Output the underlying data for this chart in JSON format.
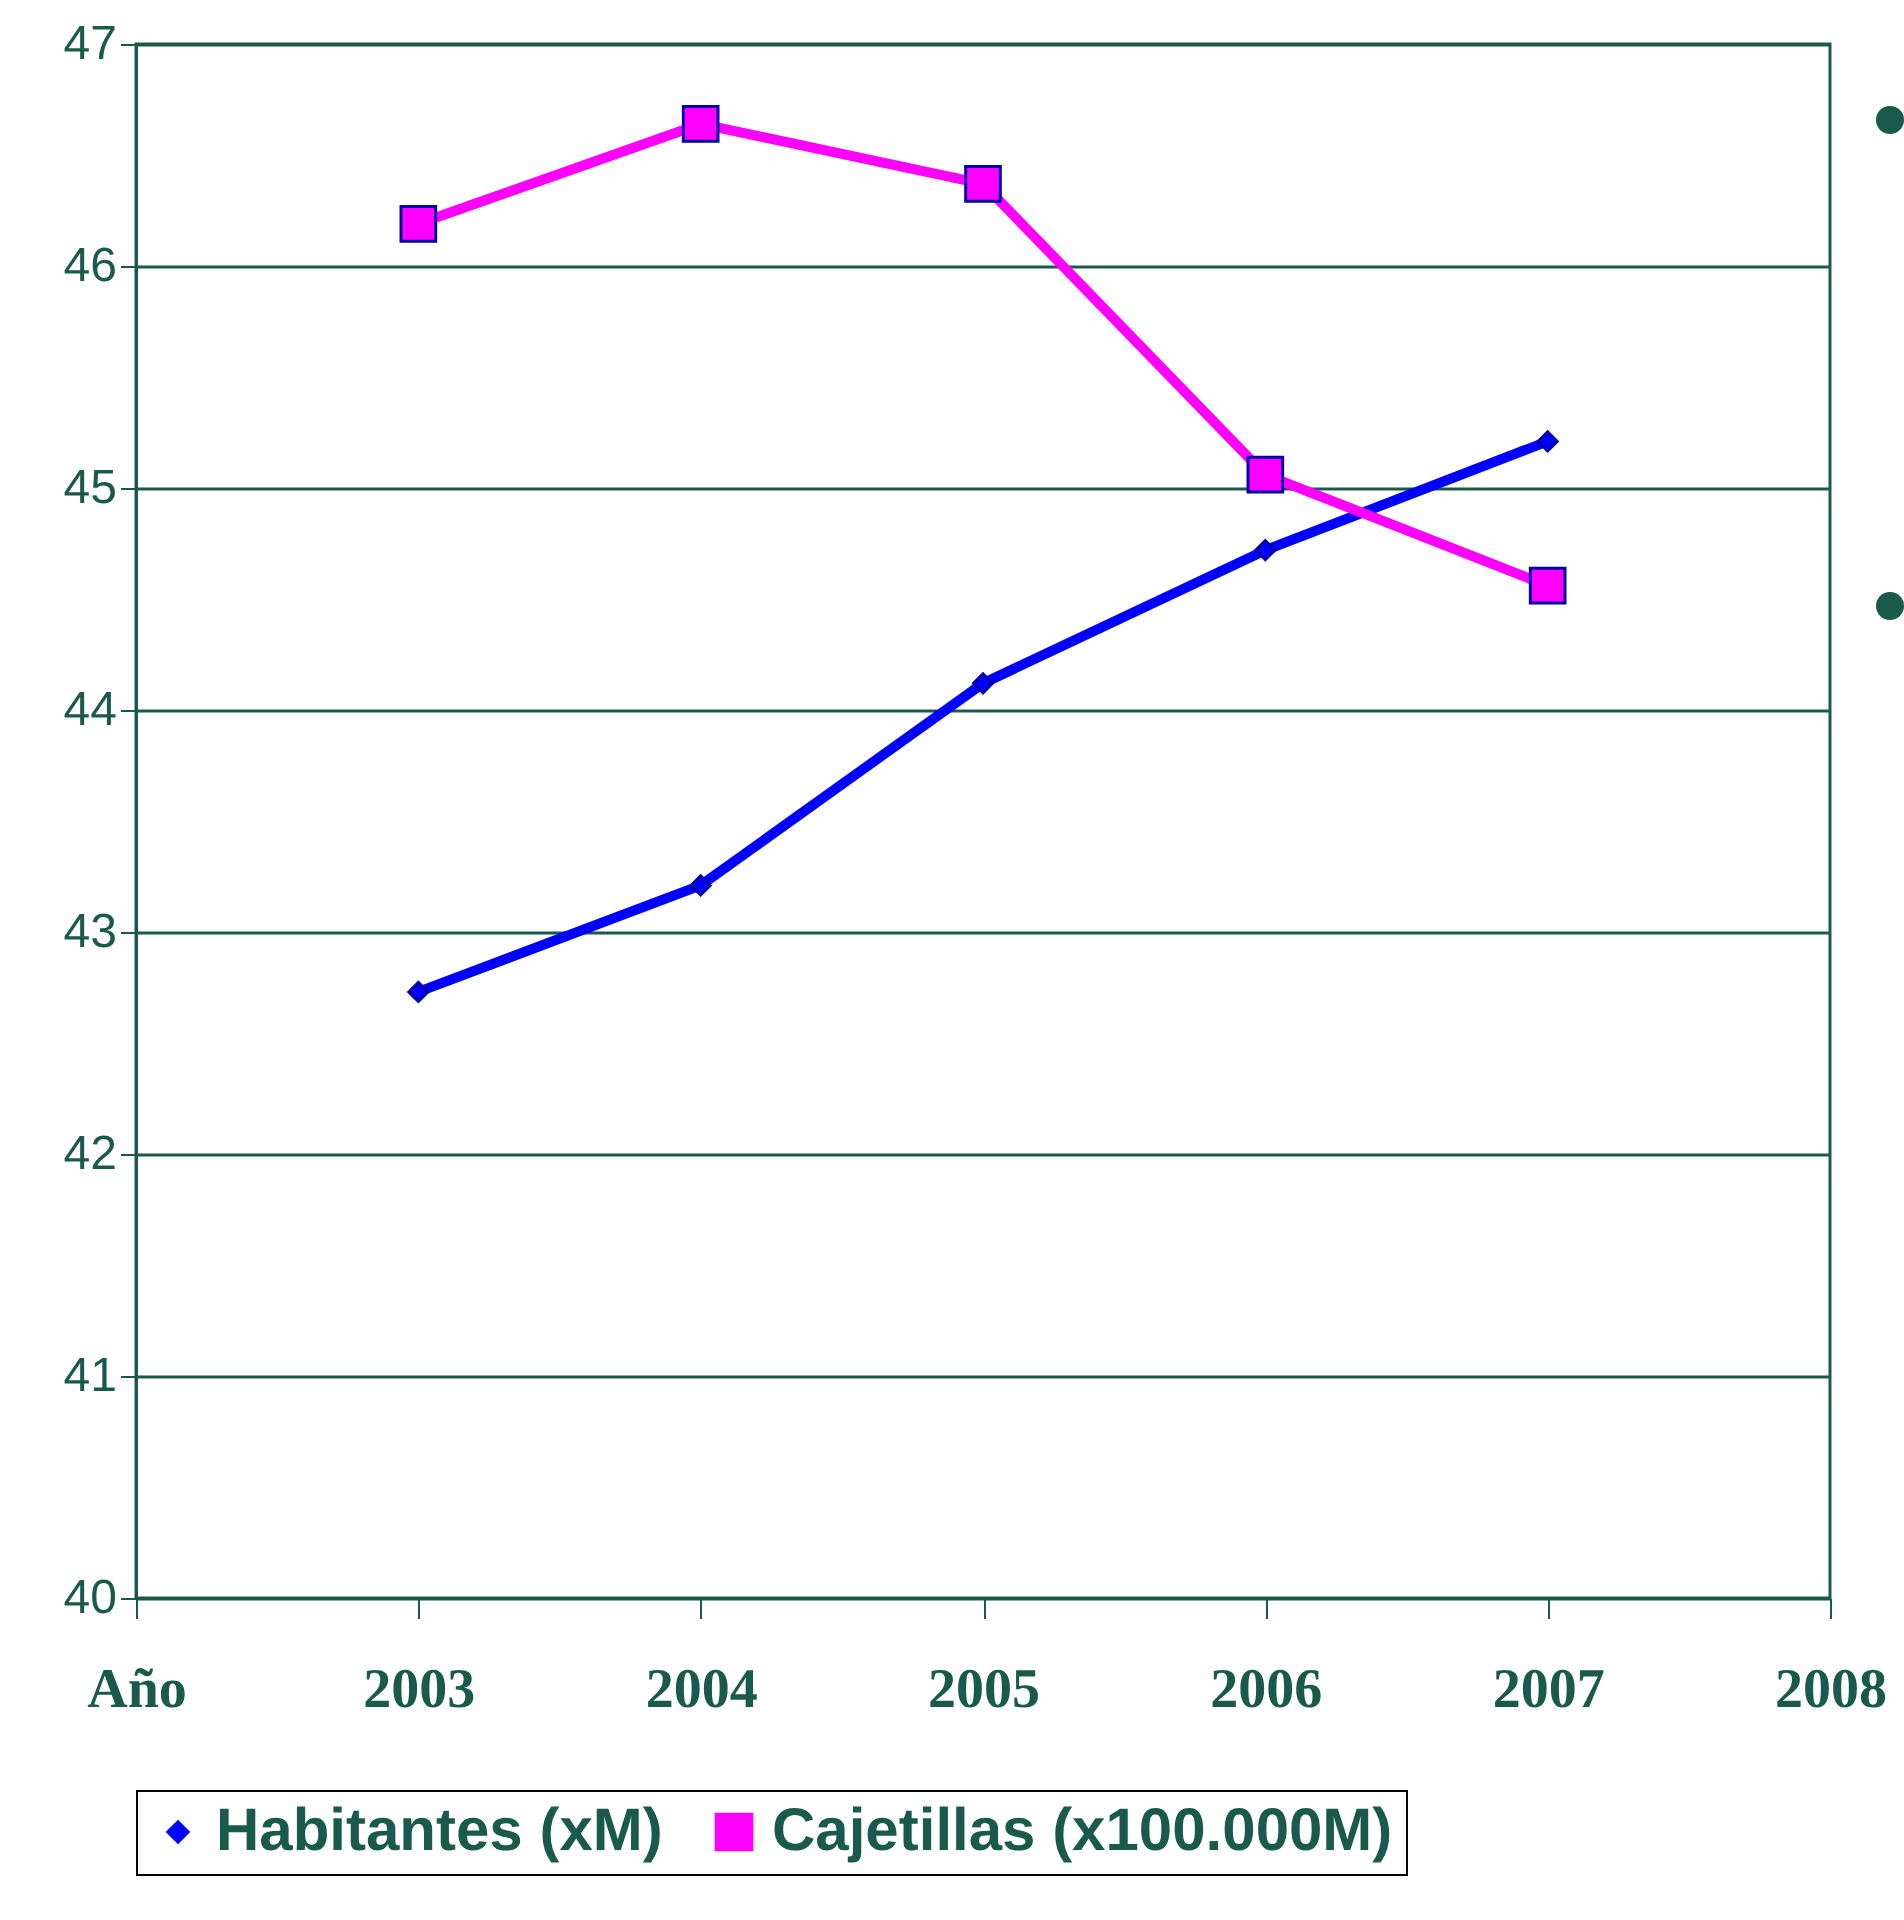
{
  "chart_data": {
    "type": "line",
    "categories": [
      "Año",
      "2003",
      "2004",
      "2005",
      "2006",
      "2007",
      "2008"
    ],
    "series": [
      {
        "name": "Habitantes (xM)",
        "color": "#0000ff",
        "marker": "diamond",
        "values": [
          null,
          42.73,
          43.21,
          44.12,
          44.72,
          45.21,
          null
        ]
      },
      {
        "name": "Cajetillas (x100.000M)",
        "color": "#ff00ff",
        "marker": "square",
        "values": [
          null,
          46.19,
          46.64,
          46.37,
          45.06,
          44.56,
          null
        ]
      }
    ],
    "ylim": [
      40,
      47
    ],
    "yticks": [
      40,
      41,
      42,
      43,
      44,
      45,
      46,
      47
    ],
    "grid": "y",
    "legend": "bottom"
  }
}
